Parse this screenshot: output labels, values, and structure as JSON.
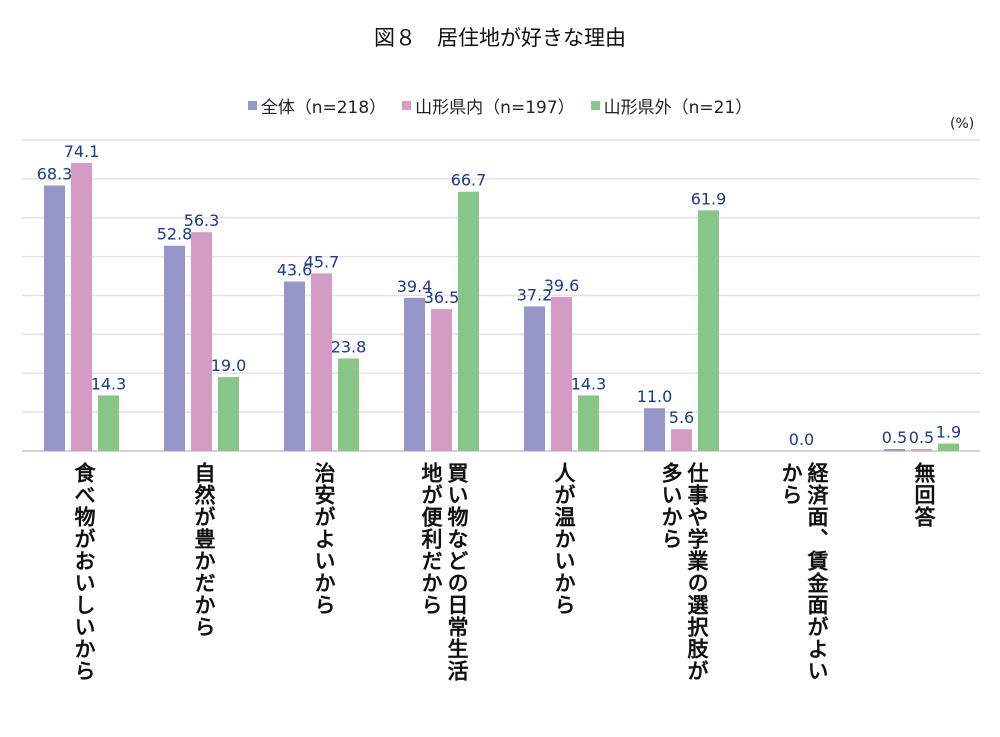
{
  "chart_data": {
    "type": "bar",
    "title": "図８　居住地が好きな理由",
    "unit_label": "(%)",
    "xlabel": "",
    "ylabel": "",
    "ylim": [
      0,
      80
    ],
    "grid": true,
    "legend_position": "top",
    "categories": [
      "食べ物がおいしいから",
      "自然が豊かだから",
      "治安がよいから",
      "買い物などの日常生活\n地が便利だから",
      "人が温かいから",
      "仕事や学業の選択肢が\n多いから",
      "経済面、賃金面がよい\nから",
      "無回答"
    ],
    "series": [
      {
        "name": "全体（n=218）",
        "color": "#9696c8",
        "values": [
          68.3,
          52.8,
          43.6,
          39.4,
          37.2,
          11.0,
          0.0,
          0.5
        ]
      },
      {
        "name": "山形県内（n=197）",
        "color": "#d49cc4",
        "values": [
          74.1,
          56.3,
          45.7,
          36.5,
          39.6,
          5.6,
          0.0,
          0.5
        ]
      },
      {
        "name": "山形県外（n=21）",
        "color": "#86c686",
        "values": [
          14.3,
          19.0,
          23.8,
          66.7,
          14.3,
          61.9,
          0.0,
          1.9
        ]
      }
    ],
    "label_color": "#1a3a8a"
  }
}
